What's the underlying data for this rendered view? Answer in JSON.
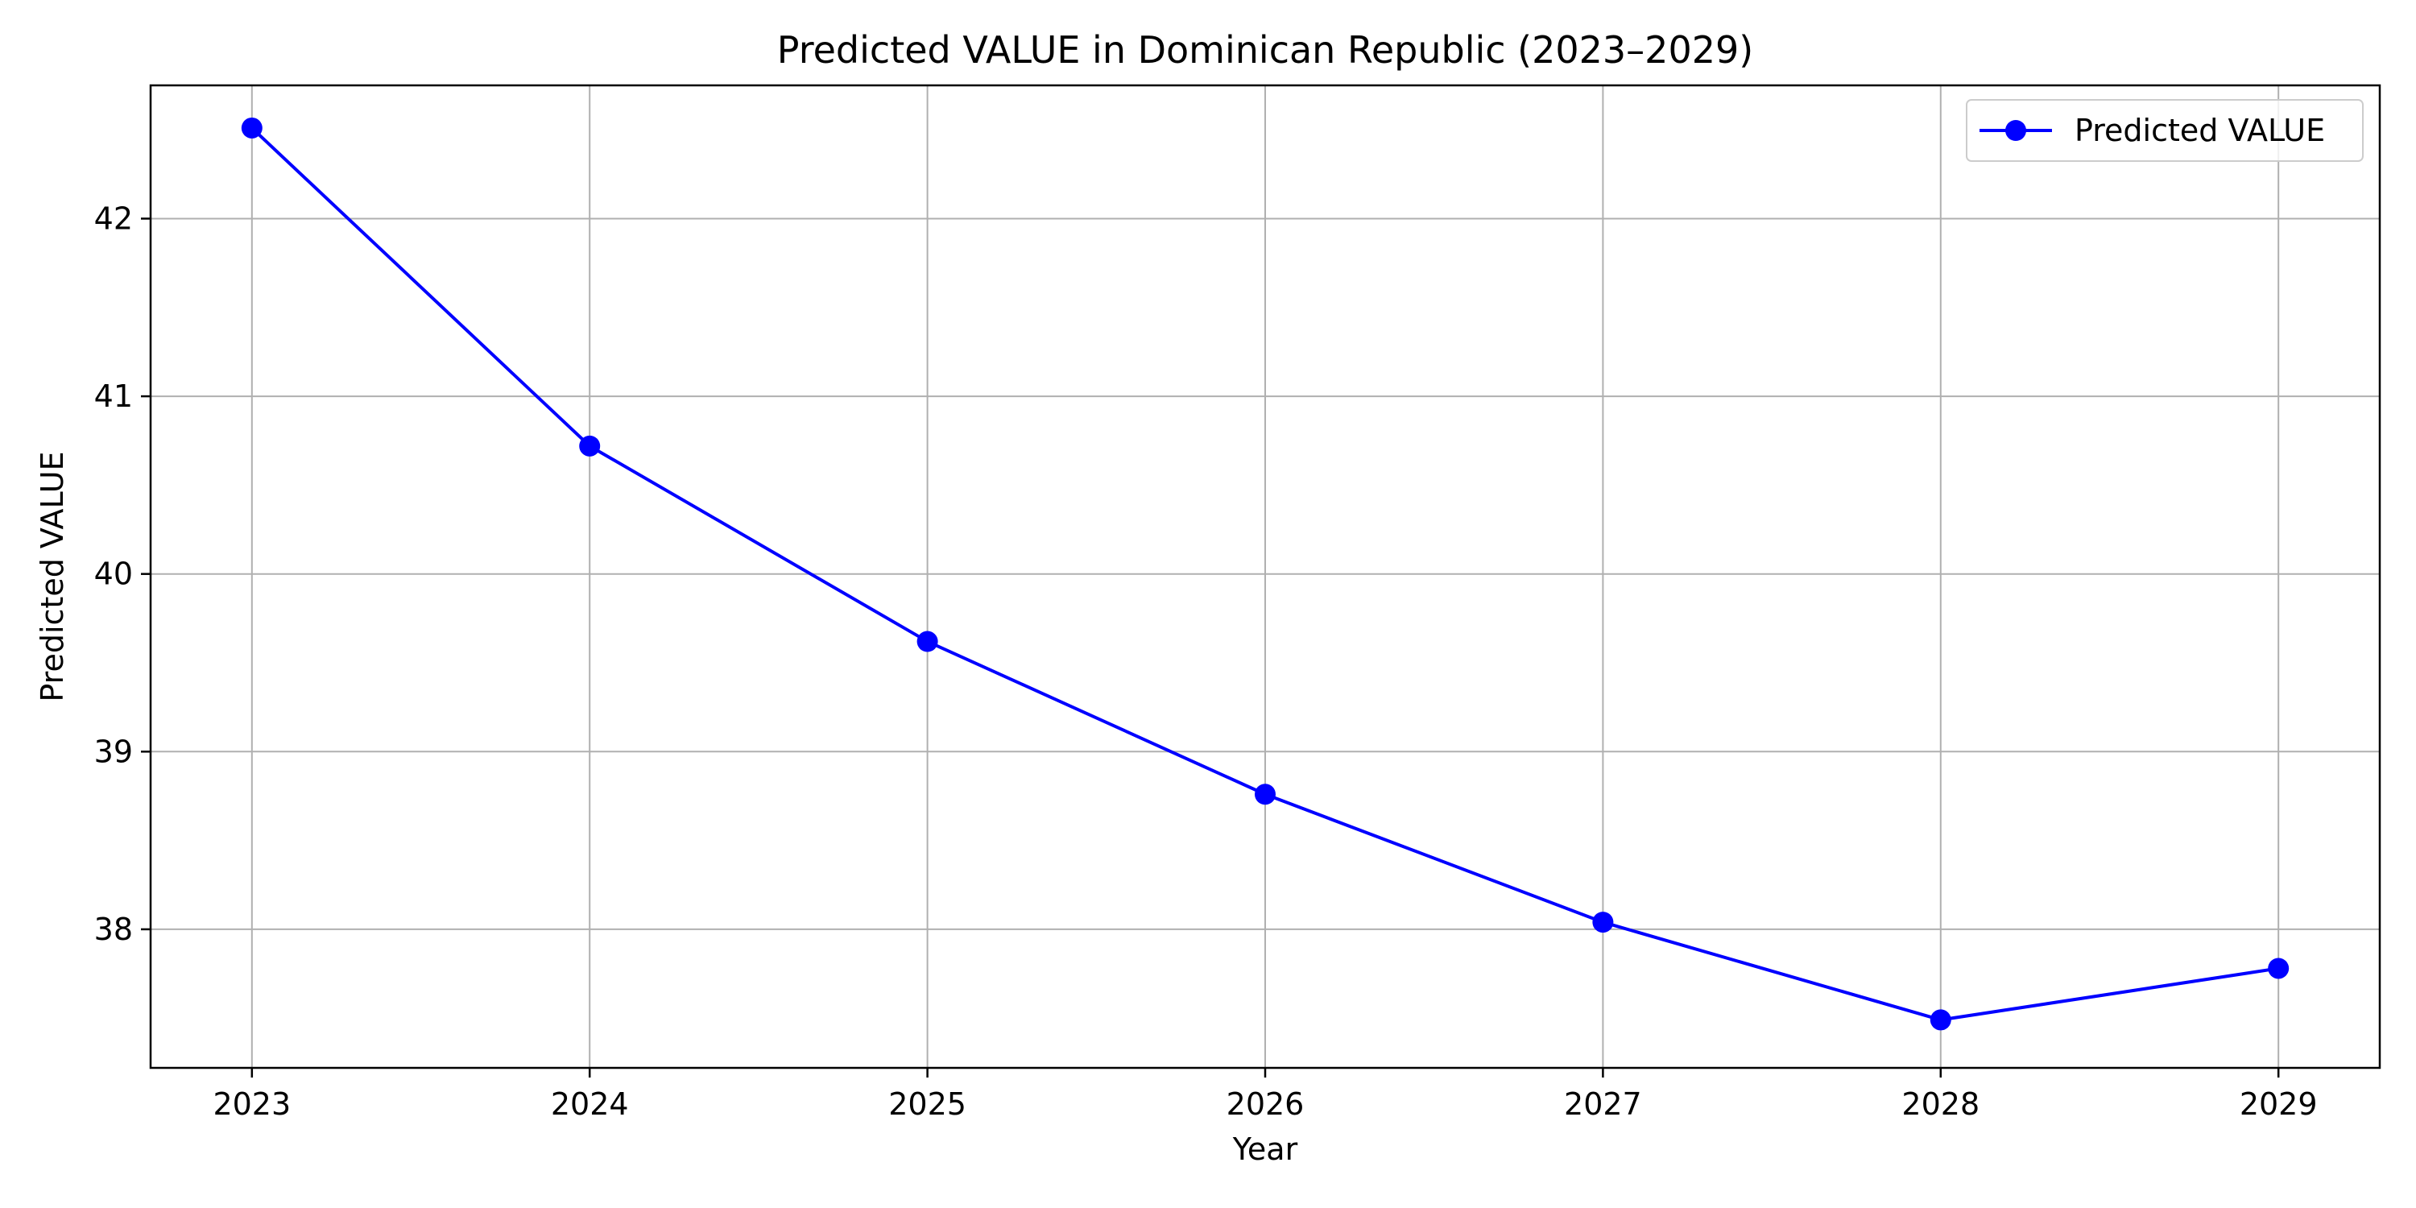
{
  "chart_data": {
    "type": "line",
    "title": "Predicted VALUE in Dominican Republic (2023–2029)",
    "xlabel": "Year",
    "ylabel": "Predicted VALUE",
    "x": [
      2023,
      2024,
      2025,
      2026,
      2027,
      2028,
      2029
    ],
    "x_tick_labels": [
      "2023",
      "2024",
      "2025",
      "2026",
      "2027",
      "2028",
      "2029"
    ],
    "y_ticks": [
      38,
      39,
      40,
      41,
      42
    ],
    "y_tick_labels": [
      "38",
      "39",
      "40",
      "41",
      "42"
    ],
    "xlim": [
      2022.7,
      2029.3
    ],
    "ylim": [
      37.22,
      42.75
    ],
    "grid": true,
    "legend_position": "top-right",
    "series": [
      {
        "name": "Predicted VALUE",
        "color": "#0000ff",
        "marker": "circle",
        "values": [
          42.51,
          40.72,
          39.62,
          38.76,
          38.04,
          37.49,
          37.78
        ]
      }
    ]
  }
}
